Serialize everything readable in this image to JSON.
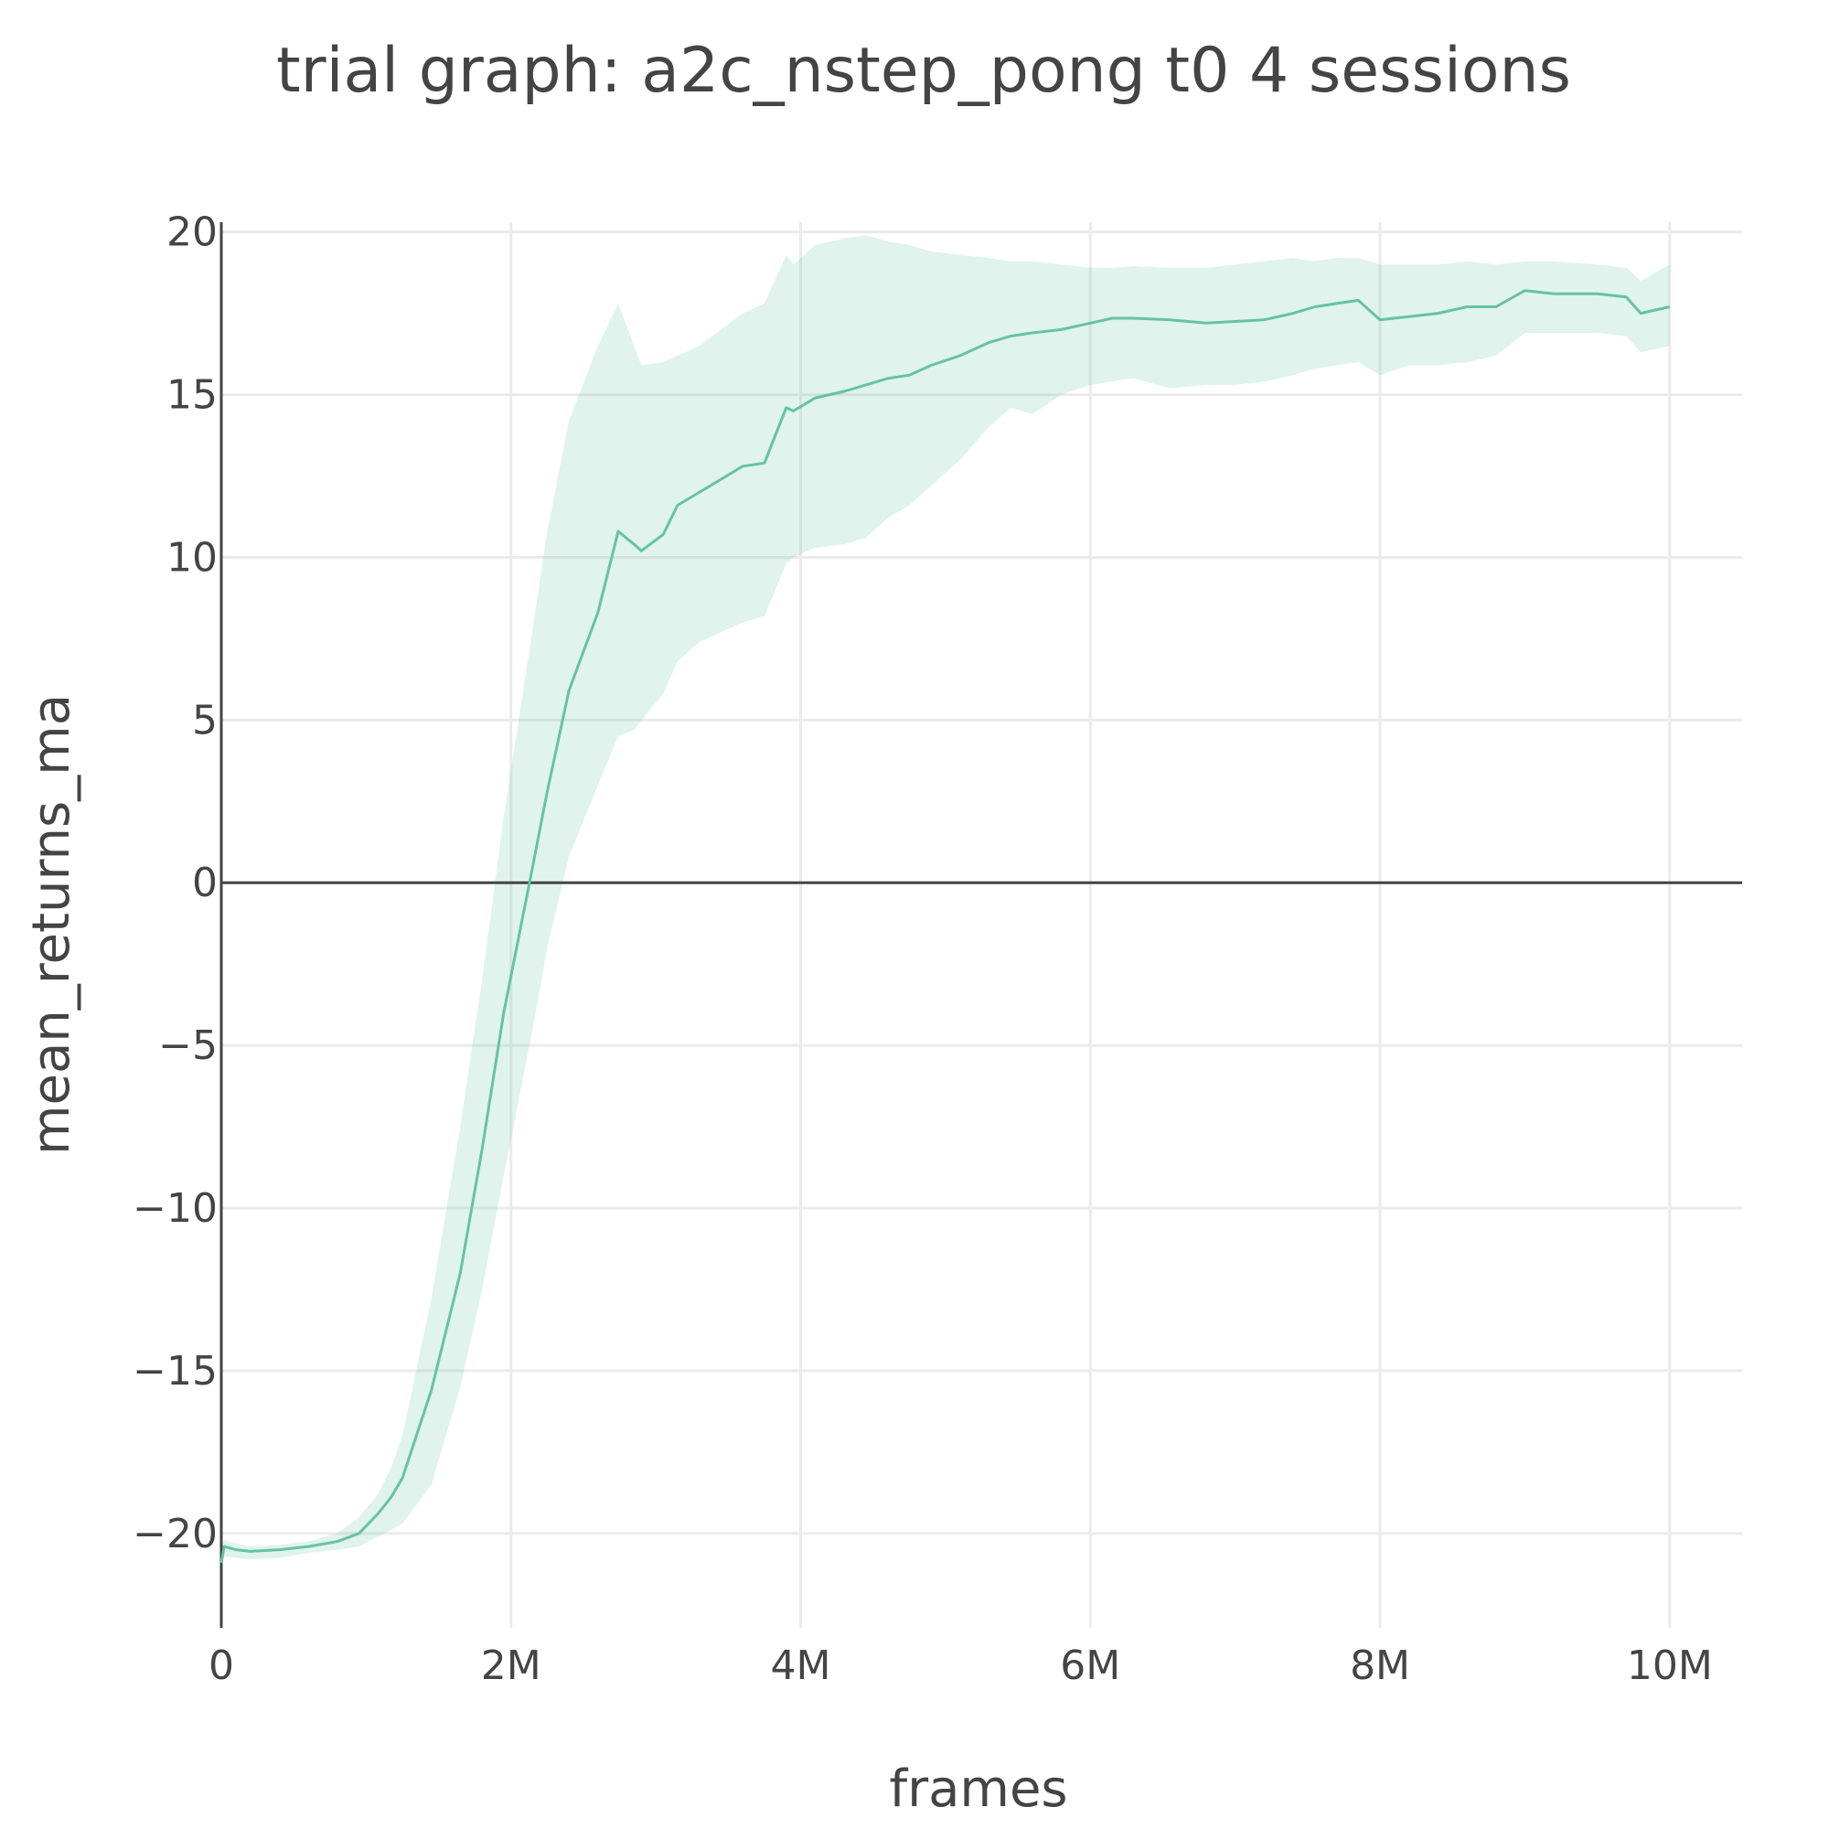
{
  "chart_data": {
    "type": "line",
    "title": "trial graph: a2c_nstep_pong t0 4 sessions",
    "xlabel": "frames",
    "ylabel": "mean_returns_ma",
    "xlim": [
      0,
      10500000
    ],
    "ylim": [
      -22.9,
      20.3
    ],
    "x_ticks": [
      {
        "value": 0,
        "label": "0"
      },
      {
        "value": 2000000,
        "label": "2M"
      },
      {
        "value": 4000000,
        "label": "4M"
      },
      {
        "value": 6000000,
        "label": "6M"
      },
      {
        "value": 8000000,
        "label": "8M"
      },
      {
        "value": 10000000,
        "label": "10M"
      }
    ],
    "y_ticks": [
      {
        "value": 20,
        "label": "20"
      },
      {
        "value": 15,
        "label": "15"
      },
      {
        "value": 10,
        "label": "10"
      },
      {
        "value": 5,
        "label": "5"
      },
      {
        "value": 0,
        "label": "0"
      },
      {
        "value": -5,
        "label": "−5"
      },
      {
        "value": -10,
        "label": "−10"
      },
      {
        "value": -15,
        "label": "−15"
      },
      {
        "value": -20,
        "label": "−20"
      }
    ],
    "grid": true,
    "colors": {
      "line": "#66c2a5",
      "band": "rgba(102,194,165,0.2)",
      "axis": "#444444",
      "grid": "#ebebeb"
    },
    "series": [
      {
        "type": "line",
        "x": [
          0,
          20000,
          100000,
          200000,
          400000,
          600000,
          800000,
          950000,
          1080000,
          1170000,
          1250000,
          1450000,
          1650000,
          1800000,
          1950000,
          2150000,
          2250000,
          2400000,
          2600000,
          2740000,
          2850000,
          2900000,
          3050000,
          3150000,
          3300000,
          3450000,
          3600000,
          3750000,
          3900000,
          3950000,
          4100000,
          4300000,
          4450000,
          4600000,
          4750000,
          4900000,
          5100000,
          5300000,
          5450000,
          5600000,
          5800000,
          6000000,
          6150000,
          6300000,
          6550000,
          6800000,
          7000000,
          7200000,
          7400000,
          7550000,
          7700000,
          7850000,
          8000000,
          8200000,
          8400000,
          8600000,
          8800000,
          9000000,
          9200000,
          9500000,
          9700000,
          9800000,
          10000000
        ],
        "values": [
          -20.9,
          -20.4,
          -20.5,
          -20.55,
          -20.5,
          -20.4,
          -20.25,
          -20.0,
          -19.4,
          -18.9,
          -18.3,
          -15.6,
          -12.0,
          -8.2,
          -4.0,
          0.5,
          2.8,
          5.9,
          8.3,
          10.8,
          10.4,
          10.2,
          10.7,
          11.6,
          12.0,
          12.4,
          12.8,
          12.9,
          14.6,
          14.5,
          14.9,
          15.1,
          15.3,
          15.5,
          15.6,
          15.9,
          16.2,
          16.6,
          16.8,
          16.9,
          17.0,
          17.2,
          17.35,
          17.35,
          17.3,
          17.2,
          17.25,
          17.3,
          17.5,
          17.7,
          17.8,
          17.9,
          17.3,
          17.4,
          17.5,
          17.7,
          17.7,
          18.2,
          18.1,
          18.1,
          18.0,
          17.5,
          17.7
        ]
      },
      {
        "type": "band",
        "x": [
          0,
          20000,
          100000,
          200000,
          400000,
          600000,
          800000,
          950000,
          1080000,
          1170000,
          1250000,
          1450000,
          1650000,
          1800000,
          1950000,
          2150000,
          2250000,
          2400000,
          2600000,
          2740000,
          2850000,
          2900000,
          3050000,
          3150000,
          3300000,
          3450000,
          3600000,
          3750000,
          3900000,
          3950000,
          4100000,
          4300000,
          4450000,
          4600000,
          4750000,
          4900000,
          5100000,
          5300000,
          5450000,
          5600000,
          5800000,
          6000000,
          6150000,
          6300000,
          6550000,
          6800000,
          7000000,
          7200000,
          7400000,
          7550000,
          7700000,
          7850000,
          8000000,
          8200000,
          8400000,
          8600000,
          8800000,
          9000000,
          9200000,
          9500000,
          9700000,
          9800000,
          10000000
        ],
        "upper": [
          -20.5,
          -20.2,
          -20.3,
          -20.4,
          -20.35,
          -20.25,
          -20.0,
          -19.5,
          -18.8,
          -18.0,
          -17.0,
          -12.8,
          -7.5,
          -3.0,
          2.0,
          7.8,
          10.8,
          14.2,
          16.5,
          17.8,
          16.5,
          15.9,
          16.0,
          16.2,
          16.5,
          17.0,
          17.5,
          17.8,
          19.3,
          19.0,
          19.6,
          19.8,
          19.9,
          19.7,
          19.6,
          19.4,
          19.3,
          19.2,
          19.1,
          19.1,
          19.0,
          18.9,
          18.9,
          18.95,
          18.9,
          18.9,
          19.0,
          19.1,
          19.2,
          19.1,
          19.2,
          19.2,
          19.0,
          19.0,
          19.0,
          19.1,
          19.0,
          19.1,
          19.1,
          19.0,
          18.9,
          18.5,
          19.0
        ],
        "lower": [
          -21.2,
          -20.7,
          -20.75,
          -20.8,
          -20.75,
          -20.6,
          -20.5,
          -20.4,
          -20.1,
          -19.9,
          -19.7,
          -18.5,
          -15.5,
          -12.5,
          -9.0,
          -4.5,
          -2.0,
          0.8,
          3.0,
          4.5,
          4.7,
          5.0,
          5.8,
          6.8,
          7.4,
          7.7,
          8.0,
          8.2,
          9.8,
          10.0,
          10.3,
          10.4,
          10.6,
          11.2,
          11.6,
          12.2,
          13.0,
          14.0,
          14.6,
          14.4,
          15.0,
          15.3,
          15.4,
          15.5,
          15.2,
          15.3,
          15.3,
          15.4,
          15.6,
          15.8,
          15.9,
          16.0,
          15.6,
          15.9,
          15.9,
          16.0,
          16.2,
          16.9,
          16.9,
          16.9,
          16.8,
          16.3,
          16.5
        ]
      }
    ]
  }
}
